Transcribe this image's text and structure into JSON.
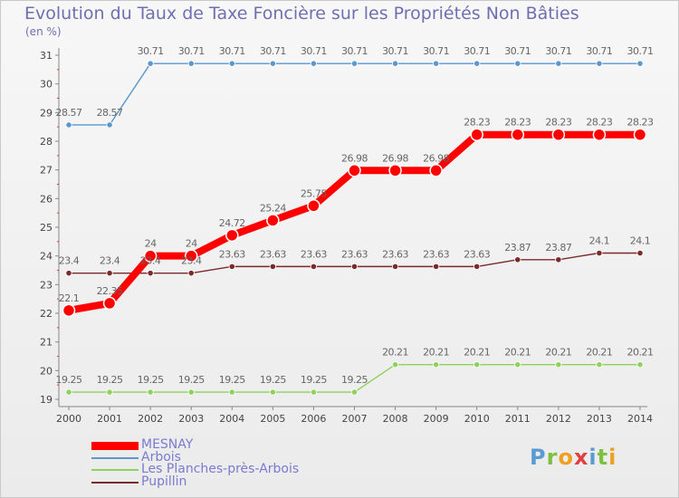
{
  "title": "Evolution du Taux de Taxe Foncière sur les Propriétés Non Bâties",
  "unit": "(en %)",
  "logo": {
    "text": "Proxiti"
  },
  "chart_data": {
    "type": "line",
    "title": "Evolution du Taux de Taxe Foncière sur les Propriétés Non Bâties",
    "ylabel": "(en %)",
    "xlabel": "",
    "ylim": [
      19,
      31
    ],
    "yticks": [
      "19",
      "20",
      "21",
      "22",
      "23",
      "24",
      "25",
      "26",
      "27",
      "28",
      "29",
      "30",
      "31"
    ],
    "categories": [
      "2000",
      "2001",
      "2002",
      "2003",
      "2004",
      "2005",
      "2006",
      "2007",
      "2008",
      "2009",
      "2010",
      "2011",
      "2012",
      "2013",
      "2014"
    ],
    "grid": false,
    "legend_position": "bottom-left",
    "series": [
      {
        "name": "MESNAY",
        "color": "#ff0000",
        "bold": true,
        "values": [
          22.1,
          22.35,
          24,
          24,
          24.72,
          25.24,
          25.75,
          26.98,
          26.98,
          26.98,
          28.23,
          28.23,
          28.23,
          28.23,
          28.23
        ],
        "labels": [
          "22.1",
          "22.35",
          "24",
          "24",
          "24.72",
          "25.24",
          "25.75",
          "26.98",
          "26.98",
          "26.98",
          "28.23",
          "28.23",
          "28.23",
          "28.23",
          "28.23"
        ]
      },
      {
        "name": "Arbois",
        "color": "#5b97cc",
        "bold": false,
        "values": [
          28.57,
          28.57,
          30.71,
          30.71,
          30.71,
          30.71,
          30.71,
          30.71,
          30.71,
          30.71,
          30.71,
          30.71,
          30.71,
          30.71,
          30.71
        ],
        "labels": [
          "28.57",
          "28.57",
          "30.71",
          "30.71",
          "30.71",
          "30.71",
          "30.71",
          "30.71",
          "30.71",
          "30.71",
          "30.71",
          "30.71",
          "30.71",
          "30.71",
          "30.71"
        ]
      },
      {
        "name": "Les Planches-près-Arbois",
        "color": "#8ed15c",
        "bold": false,
        "values": [
          19.25,
          19.25,
          19.25,
          19.25,
          19.25,
          19.25,
          19.25,
          19.25,
          20.21,
          20.21,
          20.21,
          20.21,
          20.21,
          20.21,
          20.21
        ],
        "labels": [
          "19.25",
          "19.25",
          "19.25",
          "19.25",
          "19.25",
          "19.25",
          "19.25",
          "19.25",
          "20.21",
          "20.21",
          "20.21",
          "20.21",
          "20.21",
          "20.21",
          "20.21"
        ]
      },
      {
        "name": "Pupillin",
        "color": "#7a2a2a",
        "bold": false,
        "values": [
          23.4,
          23.4,
          23.4,
          23.4,
          23.63,
          23.63,
          23.63,
          23.63,
          23.63,
          23.63,
          23.63,
          23.87,
          23.87,
          24.1,
          24.1
        ],
        "labels": [
          "23.4",
          "23.4",
          "23.4",
          "23.4",
          "23.63",
          "23.63",
          "23.63",
          "23.63",
          "23.63",
          "23.63",
          "23.63",
          "23.87",
          "23.87",
          "24.1",
          "24.1"
        ]
      }
    ]
  }
}
